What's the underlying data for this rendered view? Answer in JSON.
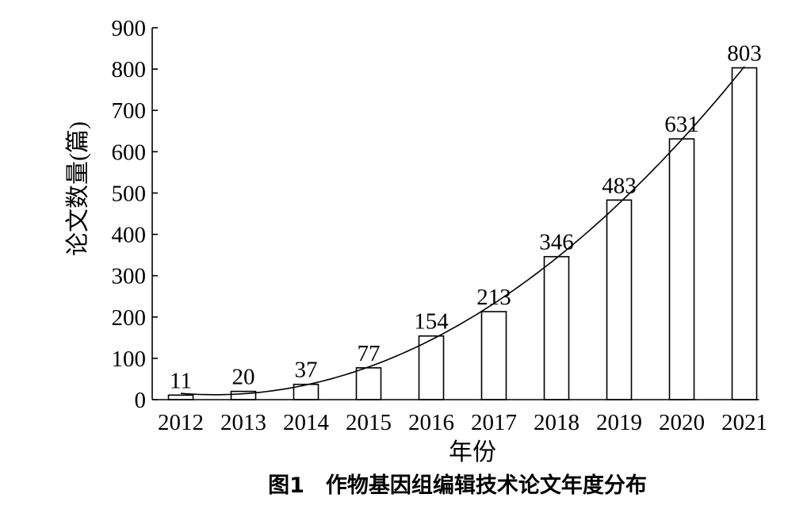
{
  "chart_data": {
    "type": "bar",
    "categories": [
      "2012",
      "2013",
      "2014",
      "2015",
      "2016",
      "2017",
      "2018",
      "2019",
      "2020",
      "2021"
    ],
    "values": [
      11,
      20,
      37,
      77,
      154,
      213,
      346,
      483,
      631,
      803
    ],
    "data_labels": [
      "11",
      "20",
      "37",
      "77",
      "154",
      "213",
      "346",
      "483",
      "631",
      "803"
    ],
    "yticks": [
      "0",
      "100",
      "200",
      "300",
      "400",
      "500",
      "600",
      "700",
      "800",
      "900"
    ],
    "ylim": [
      0,
      900
    ],
    "xlabel": "年份",
    "ylabel": "论文数量(篇)",
    "caption": "图1　作物基因组编辑技术论文年度分布",
    "trendline": true,
    "grid": false,
    "colors": {
      "bar_fill": "#ffffff",
      "stroke": "#000000"
    }
  }
}
